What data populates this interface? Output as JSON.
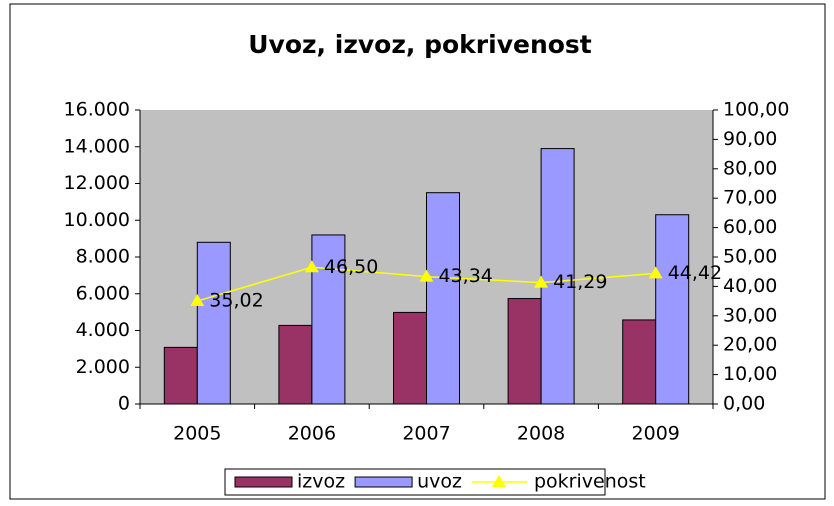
{
  "chart_data": {
    "type": "bar_line",
    "title": "Uvoz, izvoz, pokrivenost",
    "categories": [
      "2005",
      "2006",
      "2007",
      "2008",
      "2009"
    ],
    "series": [
      {
        "name": "izvoz",
        "color": "#993366",
        "values": [
          3082,
          4278,
          4984,
          5739,
          4575
        ]
      },
      {
        "name": "uvoz",
        "color": "#9999ff",
        "values": [
          8800,
          9200,
          11500,
          13900,
          10300
        ]
      },
      {
        "name": "pokrivenost",
        "color": "#ffff00",
        "axis": "y2",
        "type": "line",
        "values": [
          35.02,
          46.5,
          43.34,
          41.29,
          44.42
        ],
        "value_labels": [
          "35,02",
          "46,50",
          "43,34",
          "41,29",
          "44,42"
        ]
      }
    ],
    "ylim": [
      0,
      16000
    ],
    "yticks": [
      0,
      {
        "value": 2000,
        "label": "2.000"
      },
      {
        "value": 4000,
        "label": "4.000"
      },
      {
        "value": 6000,
        "label": "6.000"
      },
      {
        "value": 8000,
        "label": "8.000"
      },
      {
        "value": 10000,
        "label": "10.000"
      },
      {
        "value": 12000,
        "label": "12.000"
      },
      {
        "value": 14000,
        "label": "14.000"
      },
      {
        "value": 16000,
        "label": "16.000"
      }
    ],
    "y2lim": [
      0,
      100
    ],
    "y2ticks": [
      {
        "value": 0,
        "label": "0,00"
      },
      {
        "value": 10,
        "label": "10,00"
      },
      {
        "value": 20,
        "label": "20,00"
      },
      {
        "value": 30,
        "label": "30,00"
      },
      {
        "value": 40,
        "label": "40,00"
      },
      {
        "value": 50,
        "label": "50,00"
      },
      {
        "value": 60,
        "label": "60,00"
      },
      {
        "value": 70,
        "label": "70,00"
      },
      {
        "value": 80,
        "label": "80,00"
      },
      {
        "value": 90,
        "label": "90,00"
      },
      {
        "value": 100,
        "label": "100,00"
      }
    ],
    "legend": "bottom"
  }
}
